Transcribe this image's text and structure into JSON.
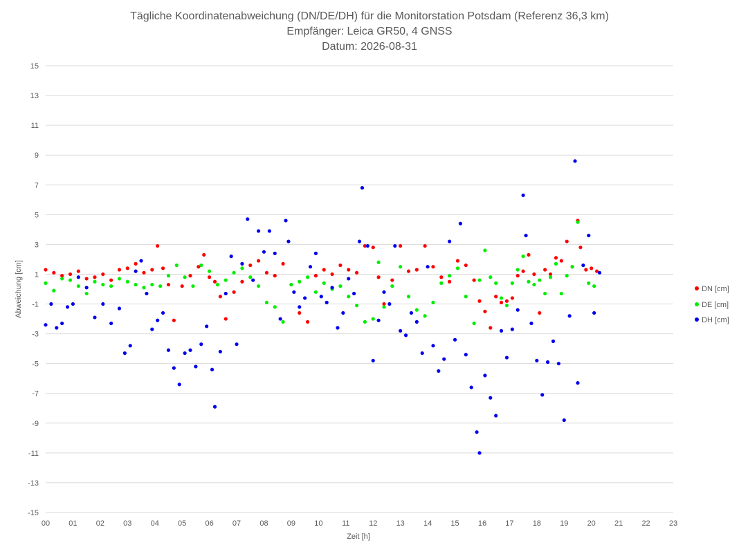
{
  "chart_data": {
    "type": "scatter",
    "title": "Tägliche Koordinatenabweichung (DN/DE/DH) für die Monitorstation Potsdam (Referenz 36,3 km)",
    "subtitle_1": "Empfänger: Leica GR50, 4 GNSS",
    "subtitle_2": "Datum: 2026-08-31",
    "xlabel": "Zeit [h]",
    "ylabel": "Abweichung [cm]",
    "xlim": [
      0,
      23
    ],
    "ylim": [
      -15,
      15
    ],
    "y_ticks": [
      "15",
      "13",
      "11",
      "9",
      "7",
      "5",
      "3",
      "1",
      "-1",
      "-3",
      "-5",
      "-7",
      "-9",
      "-11",
      "-13",
      "-15"
    ],
    "x_ticks": [
      "00",
      "01",
      "02",
      "03",
      "04",
      "05",
      "06",
      "07",
      "08",
      "09",
      "10",
      "11",
      "12",
      "13",
      "14",
      "15",
      "16",
      "17",
      "18",
      "19",
      "20",
      "21",
      "22",
      "23"
    ],
    "grid": "horizontal",
    "legend_position": "right",
    "series": [
      {
        "name": "DN [cm]",
        "color": "#ff0000",
        "points": [
          [
            0.0,
            1.3
          ],
          [
            0.3,
            1.1
          ],
          [
            0.6,
            0.9
          ],
          [
            0.9,
            1.0
          ],
          [
            1.2,
            1.2
          ],
          [
            1.5,
            0.7
          ],
          [
            1.8,
            0.8
          ],
          [
            2.1,
            1.0
          ],
          [
            2.4,
            0.6
          ],
          [
            2.7,
            1.3
          ],
          [
            3.0,
            1.4
          ],
          [
            3.3,
            1.7
          ],
          [
            3.6,
            1.1
          ],
          [
            3.9,
            1.3
          ],
          [
            4.1,
            2.9
          ],
          [
            4.3,
            1.4
          ],
          [
            4.5,
            0.3
          ],
          [
            4.7,
            -2.1
          ],
          [
            5.0,
            0.2
          ],
          [
            5.3,
            0.9
          ],
          [
            5.6,
            1.5
          ],
          [
            5.8,
            2.3
          ],
          [
            6.0,
            0.8
          ],
          [
            6.2,
            0.5
          ],
          [
            6.4,
            -0.5
          ],
          [
            6.6,
            -2.0
          ],
          [
            6.9,
            -0.2
          ],
          [
            7.2,
            0.5
          ],
          [
            7.5,
            1.6
          ],
          [
            7.8,
            1.9
          ],
          [
            8.1,
            1.1
          ],
          [
            8.4,
            0.9
          ],
          [
            8.7,
            1.7
          ],
          [
            9.0,
            0.3
          ],
          [
            9.3,
            -1.6
          ],
          [
            9.6,
            -2.2
          ],
          [
            9.9,
            0.9
          ],
          [
            10.2,
            1.3
          ],
          [
            10.5,
            1.0
          ],
          [
            10.8,
            1.6
          ],
          [
            11.1,
            1.3
          ],
          [
            11.4,
            1.1
          ],
          [
            11.7,
            2.9
          ],
          [
            12.0,
            2.8
          ],
          [
            12.2,
            0.8
          ],
          [
            12.4,
            -1.0
          ],
          [
            12.7,
            0.6
          ],
          [
            13.0,
            2.9
          ],
          [
            13.3,
            1.2
          ],
          [
            13.6,
            1.3
          ],
          [
            13.9,
            2.9
          ],
          [
            14.2,
            1.5
          ],
          [
            14.5,
            0.8
          ],
          [
            14.8,
            0.5
          ],
          [
            15.1,
            1.9
          ],
          [
            15.4,
            1.6
          ],
          [
            15.7,
            0.6
          ],
          [
            15.9,
            -0.8
          ],
          [
            16.1,
            -1.5
          ],
          [
            16.3,
            -2.6
          ],
          [
            16.5,
            -0.5
          ],
          [
            16.7,
            -0.9
          ],
          [
            16.9,
            -0.8
          ],
          [
            17.1,
            -0.6
          ],
          [
            17.3,
            0.9
          ],
          [
            17.5,
            1.2
          ],
          [
            17.7,
            2.3
          ],
          [
            17.9,
            1.0
          ],
          [
            18.1,
            -1.6
          ],
          [
            18.3,
            1.3
          ],
          [
            18.5,
            1.0
          ],
          [
            18.7,
            2.1
          ],
          [
            18.9,
            1.9
          ],
          [
            19.1,
            3.2
          ],
          [
            19.3,
            1.5
          ],
          [
            19.5,
            4.6
          ],
          [
            19.6,
            2.8
          ],
          [
            19.8,
            1.3
          ],
          [
            20.0,
            1.4
          ],
          [
            20.2,
            1.2
          ]
        ]
      },
      {
        "name": "DE [cm]",
        "color": "#00ee00",
        "points": [
          [
            0.0,
            0.4
          ],
          [
            0.3,
            -0.1
          ],
          [
            0.6,
            0.7
          ],
          [
            0.9,
            0.6
          ],
          [
            1.2,
            0.2
          ],
          [
            1.5,
            -0.3
          ],
          [
            1.8,
            0.5
          ],
          [
            2.1,
            0.3
          ],
          [
            2.4,
            0.2
          ],
          [
            2.7,
            0.7
          ],
          [
            3.0,
            0.5
          ],
          [
            3.3,
            0.3
          ],
          [
            3.6,
            0.1
          ],
          [
            3.9,
            0.3
          ],
          [
            4.2,
            0.2
          ],
          [
            4.5,
            0.9
          ],
          [
            4.8,
            1.6
          ],
          [
            5.1,
            0.8
          ],
          [
            5.4,
            0.2
          ],
          [
            5.7,
            1.6
          ],
          [
            6.0,
            1.2
          ],
          [
            6.3,
            0.3
          ],
          [
            6.6,
            0.6
          ],
          [
            6.9,
            1.1
          ],
          [
            7.2,
            1.4
          ],
          [
            7.5,
            0.8
          ],
          [
            7.8,
            0.2
          ],
          [
            8.1,
            -0.9
          ],
          [
            8.4,
            -1.2
          ],
          [
            8.7,
            -2.2
          ],
          [
            9.0,
            0.3
          ],
          [
            9.3,
            0.5
          ],
          [
            9.6,
            0.8
          ],
          [
            9.9,
            -0.2
          ],
          [
            10.2,
            0.4
          ],
          [
            10.5,
            0.0
          ],
          [
            10.8,
            0.2
          ],
          [
            11.1,
            -0.5
          ],
          [
            11.4,
            -1.1
          ],
          [
            11.7,
            -2.2
          ],
          [
            12.0,
            -2.0
          ],
          [
            12.2,
            1.8
          ],
          [
            12.4,
            -1.2
          ],
          [
            12.7,
            0.2
          ],
          [
            13.0,
            1.5
          ],
          [
            13.3,
            -0.5
          ],
          [
            13.6,
            -1.4
          ],
          [
            13.9,
            -1.8
          ],
          [
            14.2,
            -0.9
          ],
          [
            14.5,
            0.4
          ],
          [
            14.8,
            0.9
          ],
          [
            15.1,
            1.4
          ],
          [
            15.4,
            -0.5
          ],
          [
            15.7,
            -2.3
          ],
          [
            15.9,
            0.6
          ],
          [
            16.1,
            2.6
          ],
          [
            16.3,
            0.8
          ],
          [
            16.5,
            0.4
          ],
          [
            16.7,
            -0.6
          ],
          [
            16.9,
            -1.1
          ],
          [
            17.1,
            0.4
          ],
          [
            17.3,
            1.3
          ],
          [
            17.5,
            2.2
          ],
          [
            17.7,
            0.5
          ],
          [
            17.9,
            0.3
          ],
          [
            18.1,
            0.6
          ],
          [
            18.3,
            -0.3
          ],
          [
            18.5,
            0.8
          ],
          [
            18.7,
            1.7
          ],
          [
            18.9,
            -0.3
          ],
          [
            19.1,
            0.9
          ],
          [
            19.3,
            1.5
          ],
          [
            19.5,
            4.5
          ],
          [
            19.7,
            1.6
          ],
          [
            19.9,
            0.4
          ],
          [
            20.1,
            0.2
          ]
        ]
      },
      {
        "name": "DH [cm]",
        "color": "#0000ee",
        "points": [
          [
            0.0,
            -2.4
          ],
          [
            0.2,
            -1.0
          ],
          [
            0.4,
            -2.6
          ],
          [
            0.6,
            -2.3
          ],
          [
            0.8,
            -1.2
          ],
          [
            1.0,
            -1.0
          ],
          [
            1.2,
            0.8
          ],
          [
            1.5,
            0.1
          ],
          [
            1.8,
            -1.9
          ],
          [
            2.1,
            -1.0
          ],
          [
            2.4,
            -2.3
          ],
          [
            2.7,
            -1.3
          ],
          [
            2.9,
            -4.3
          ],
          [
            3.1,
            -3.8
          ],
          [
            3.3,
            1.2
          ],
          [
            3.5,
            1.9
          ],
          [
            3.7,
            -0.3
          ],
          [
            3.9,
            -2.7
          ],
          [
            4.1,
            -2.1
          ],
          [
            4.3,
            -1.6
          ],
          [
            4.5,
            -4.1
          ],
          [
            4.7,
            -5.3
          ],
          [
            4.9,
            -6.4
          ],
          [
            5.1,
            -4.3
          ],
          [
            5.3,
            -4.1
          ],
          [
            5.5,
            -5.2
          ],
          [
            5.7,
            -3.7
          ],
          [
            5.9,
            -2.5
          ],
          [
            6.1,
            -5.4
          ],
          [
            6.2,
            -7.9
          ],
          [
            6.4,
            -4.2
          ],
          [
            6.6,
            -0.3
          ],
          [
            6.8,
            2.2
          ],
          [
            7.0,
            -3.7
          ],
          [
            7.2,
            1.7
          ],
          [
            7.4,
            4.7
          ],
          [
            7.6,
            0.6
          ],
          [
            7.8,
            3.9
          ],
          [
            8.0,
            2.5
          ],
          [
            8.2,
            3.9
          ],
          [
            8.4,
            2.4
          ],
          [
            8.6,
            -2.0
          ],
          [
            8.8,
            4.6
          ],
          [
            8.9,
            3.2
          ],
          [
            9.1,
            -0.2
          ],
          [
            9.3,
            -1.2
          ],
          [
            9.5,
            -0.6
          ],
          [
            9.7,
            1.5
          ],
          [
            9.9,
            2.4
          ],
          [
            10.1,
            -0.5
          ],
          [
            10.3,
            -0.9
          ],
          [
            10.5,
            0.1
          ],
          [
            10.7,
            -2.6
          ],
          [
            10.9,
            -1.6
          ],
          [
            11.1,
            0.7
          ],
          [
            11.3,
            -0.3
          ],
          [
            11.5,
            3.2
          ],
          [
            11.6,
            6.8
          ],
          [
            11.8,
            2.9
          ],
          [
            12.0,
            -4.8
          ],
          [
            12.2,
            -2.1
          ],
          [
            12.4,
            -0.2
          ],
          [
            12.6,
            -1.0
          ],
          [
            12.8,
            2.9
          ],
          [
            13.0,
            -2.8
          ],
          [
            13.2,
            -3.1
          ],
          [
            13.4,
            -1.6
          ],
          [
            13.6,
            -2.2
          ],
          [
            13.8,
            -4.3
          ],
          [
            14.0,
            1.5
          ],
          [
            14.2,
            -3.8
          ],
          [
            14.4,
            -5.5
          ],
          [
            14.6,
            -4.7
          ],
          [
            14.8,
            3.2
          ],
          [
            15.0,
            -3.4
          ],
          [
            15.2,
            4.4
          ],
          [
            15.4,
            -4.4
          ],
          [
            15.6,
            -6.6
          ],
          [
            15.8,
            -9.6
          ],
          [
            15.9,
            -11.0
          ],
          [
            16.1,
            -5.8
          ],
          [
            16.3,
            -7.3
          ],
          [
            16.5,
            -8.5
          ],
          [
            16.7,
            -2.8
          ],
          [
            16.9,
            -4.6
          ],
          [
            17.1,
            -2.7
          ],
          [
            17.3,
            -1.4
          ],
          [
            17.5,
            6.3
          ],
          [
            17.6,
            3.6
          ],
          [
            17.8,
            -2.3
          ],
          [
            18.0,
            -4.8
          ],
          [
            18.2,
            -7.1
          ],
          [
            18.4,
            -4.9
          ],
          [
            18.6,
            -3.5
          ],
          [
            18.8,
            -5.0
          ],
          [
            19.0,
            -8.8
          ],
          [
            19.2,
            -1.8
          ],
          [
            19.4,
            8.6
          ],
          [
            19.5,
            -6.3
          ],
          [
            19.7,
            1.6
          ],
          [
            19.9,
            3.6
          ],
          [
            20.1,
            -1.6
          ],
          [
            20.3,
            1.1
          ]
        ]
      }
    ]
  }
}
